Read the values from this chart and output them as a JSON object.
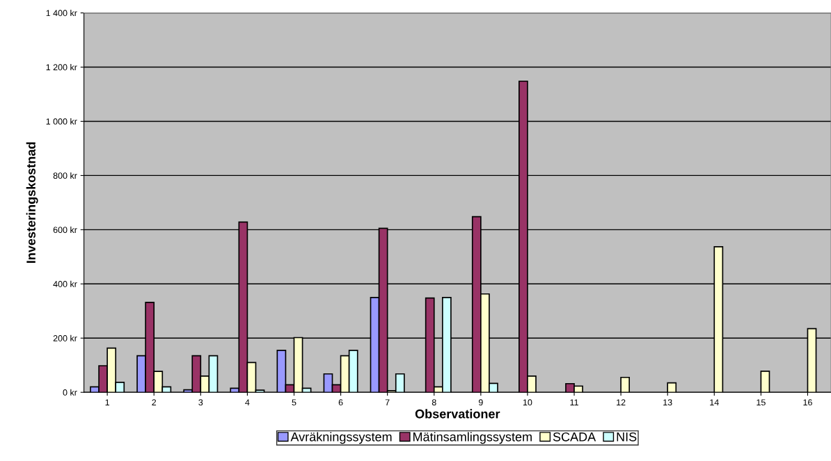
{
  "chart_data": {
    "type": "bar",
    "xlabel": "Observationer",
    "ylabel": "Investeringskostnad",
    "categories": [
      "1",
      "2",
      "3",
      "4",
      "5",
      "6",
      "7",
      "8",
      "9",
      "10",
      "11",
      "12",
      "13",
      "14",
      "15",
      "16"
    ],
    "series": [
      {
        "name": "Avräkningssystem",
        "color": "#9999ff",
        "values": [
          20,
          135,
          9,
          15,
          155,
          68,
          350,
          null,
          null,
          null,
          null,
          null,
          null,
          null,
          null,
          null
        ]
      },
      {
        "name": "Mätinsamlingssystem",
        "color": "#993366",
        "values": [
          98,
          332,
          135,
          628,
          28,
          28,
          605,
          348,
          648,
          1148,
          32,
          null,
          null,
          null,
          null,
          null
        ]
      },
      {
        "name": "SCADA",
        "color": "#ffffcc",
        "values": [
          163,
          77,
          60,
          110,
          202,
          135,
          6,
          20,
          363,
          60,
          23,
          55,
          35,
          537,
          78,
          235
        ]
      },
      {
        "name": "NIS",
        "color": "#ccffff",
        "values": [
          37,
          20,
          135,
          8,
          15,
          155,
          68,
          350,
          33,
          null,
          null,
          null,
          null,
          null,
          null,
          null
        ]
      }
    ],
    "ylim": [
      0,
      1400
    ],
    "yticks": [
      {
        "value": 0,
        "label": "0 kr"
      },
      {
        "value": 200,
        "label": "200 kr"
      },
      {
        "value": 400,
        "label": "400 kr"
      },
      {
        "value": 600,
        "label": "600 kr"
      },
      {
        "value": 800,
        "label": "800 kr"
      },
      {
        "value": 1000,
        "label": "1 000 kr"
      },
      {
        "value": 1200,
        "label": "1 200 kr"
      },
      {
        "value": 1400,
        "label": "1 400 kr"
      }
    ],
    "grid": "y",
    "legend": "bottom"
  }
}
